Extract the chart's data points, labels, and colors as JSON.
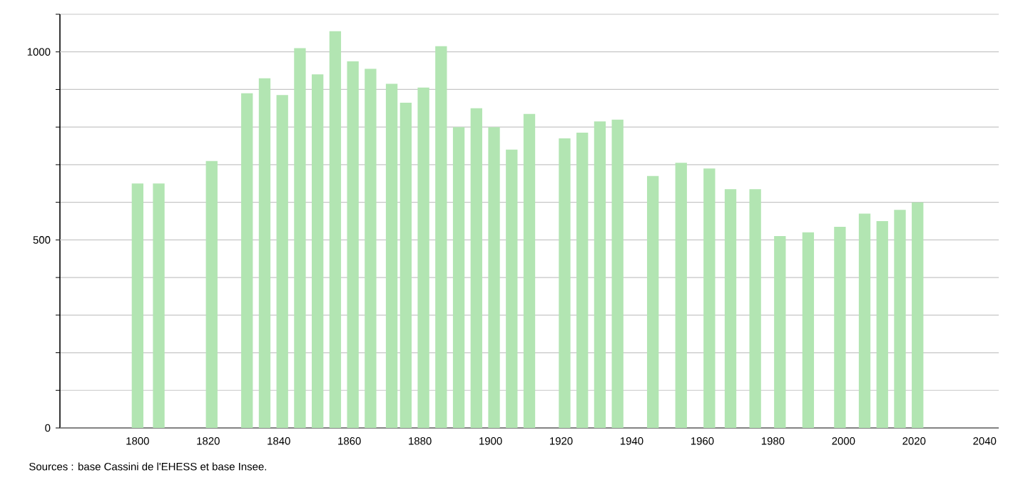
{
  "chart_data": {
    "type": "bar",
    "x": [
      1800,
      1806,
      1821,
      1831,
      1836,
      1841,
      1846,
      1851,
      1856,
      1861,
      1866,
      1872,
      1876,
      1881,
      1886,
      1891,
      1896,
      1901,
      1906,
      1911,
      1921,
      1926,
      1931,
      1936,
      1946,
      1954,
      1962,
      1968,
      1975,
      1982,
      1990,
      1999,
      2006,
      2011,
      2016,
      2021
    ],
    "values": [
      650,
      650,
      710,
      890,
      930,
      885,
      1010,
      940,
      1055,
      975,
      955,
      915,
      865,
      905,
      1015,
      800,
      850,
      800,
      740,
      835,
      770,
      785,
      815,
      820,
      670,
      705,
      690,
      635,
      635,
      510,
      520,
      535,
      570,
      550,
      580,
      600
    ],
    "color": "#b2e5b2",
    "xlim": [
      1778,
      2044
    ],
    "xticks": [
      1800,
      1820,
      1840,
      1860,
      1880,
      1900,
      1920,
      1940,
      1960,
      1980,
      2000,
      2020,
      2040
    ],
    "ylim": [
      0,
      1100
    ],
    "yticks": [
      0,
      {
        "value": 100,
        "label": null
      },
      {
        "value": 200,
        "label": null
      },
      {
        "value": 300,
        "label": null
      },
      {
        "value": 400,
        "label": null
      },
      500,
      {
        "value": 600,
        "label": null
      },
      {
        "value": 700,
        "label": null
      },
      {
        "value": 800,
        "label": null
      },
      {
        "value": 900,
        "label": null
      },
      1000,
      {
        "value": 1100,
        "label": null
      }
    ],
    "grid": "y",
    "annotations": [
      "Sources : base Cassini de l'EHESS et base Insee."
    ]
  }
}
